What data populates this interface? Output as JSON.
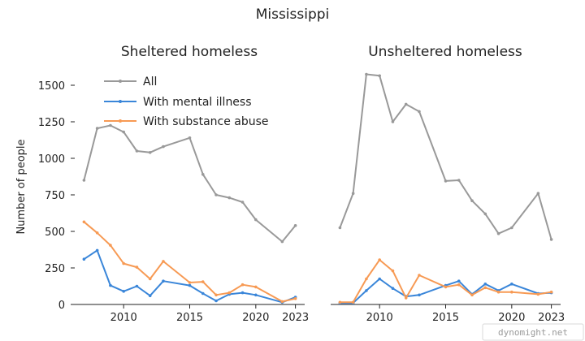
{
  "suptitle": "Mississippi",
  "ylabel": "Number of people",
  "watermark": "dynomight.net",
  "legend": {
    "placement": "top-left",
    "entries": [
      "All",
      "With mental illness",
      "With substance abuse"
    ]
  },
  "colors": {
    "All": "#999999",
    "With mental illness": "#3a86d9",
    "With substance abuse": "#f79a54"
  },
  "chart_data": [
    {
      "type": "line",
      "title": "Sheltered homeless",
      "xlim": [
        2006.3,
        2023.7
      ],
      "ylim": [
        0,
        1650
      ],
      "xticks": [
        2010,
        2015,
        2020,
        2023
      ],
      "yticks": [
        0,
        250,
        500,
        750,
        1000,
        1250,
        1500
      ],
      "show_yticks": true,
      "series": [
        {
          "name": "All",
          "x": [
            2007,
            2008,
            2009,
            2010,
            2011,
            2012,
            2013,
            2015,
            2016,
            2017,
            2018,
            2019,
            2020,
            2022,
            2023
          ],
          "y": [
            850,
            1205,
            1225,
            1180,
            1050,
            1040,
            1080,
            1140,
            890,
            750,
            730,
            700,
            580,
            430,
            540
          ]
        },
        {
          "name": "With mental illness",
          "x": [
            2007,
            2008,
            2009,
            2010,
            2011,
            2012,
            2013,
            2015,
            2016,
            2017,
            2018,
            2019,
            2020,
            2022,
            2023
          ],
          "y": [
            310,
            370,
            130,
            90,
            125,
            60,
            160,
            130,
            75,
            25,
            70,
            80,
            65,
            15,
            50
          ]
        },
        {
          "name": "With substance abuse",
          "x": [
            2007,
            2008,
            2009,
            2010,
            2011,
            2012,
            2013,
            2015,
            2016,
            2017,
            2018,
            2019,
            2020,
            2022,
            2023
          ],
          "y": [
            565,
            490,
            405,
            280,
            255,
            175,
            295,
            150,
            155,
            65,
            80,
            135,
            120,
            20,
            40
          ]
        }
      ]
    },
    {
      "type": "line",
      "title": "Unsheltered homeless",
      "xlim": [
        2006.3,
        2023.7
      ],
      "ylim": [
        0,
        1650
      ],
      "xticks": [
        2010,
        2015,
        2020,
        2023
      ],
      "yticks": [],
      "show_yticks": false,
      "series": [
        {
          "name": "All",
          "x": [
            2007,
            2008,
            2009,
            2010,
            2011,
            2012,
            2013,
            2015,
            2016,
            2017,
            2018,
            2019,
            2020,
            2022,
            2023
          ],
          "y": [
            525,
            760,
            1575,
            1565,
            1250,
            1370,
            1320,
            845,
            850,
            710,
            620,
            485,
            525,
            760,
            445
          ]
        },
        {
          "name": "With mental illness",
          "x": [
            2007,
            2008,
            2009,
            2010,
            2011,
            2012,
            2013,
            2015,
            2016,
            2017,
            2018,
            2019,
            2020,
            2022,
            2023
          ],
          "y": [
            10,
            10,
            95,
            175,
            110,
            55,
            65,
            130,
            160,
            70,
            140,
            95,
            140,
            75,
            80
          ]
        },
        {
          "name": "With substance abuse",
          "x": [
            2007,
            2008,
            2009,
            2010,
            2011,
            2012,
            2013,
            2015,
            2016,
            2017,
            2018,
            2019,
            2020,
            2022,
            2023
          ],
          "y": [
            15,
            15,
            175,
            305,
            230,
            45,
            200,
            120,
            135,
            65,
            115,
            85,
            85,
            70,
            85
          ]
        }
      ]
    }
  ]
}
